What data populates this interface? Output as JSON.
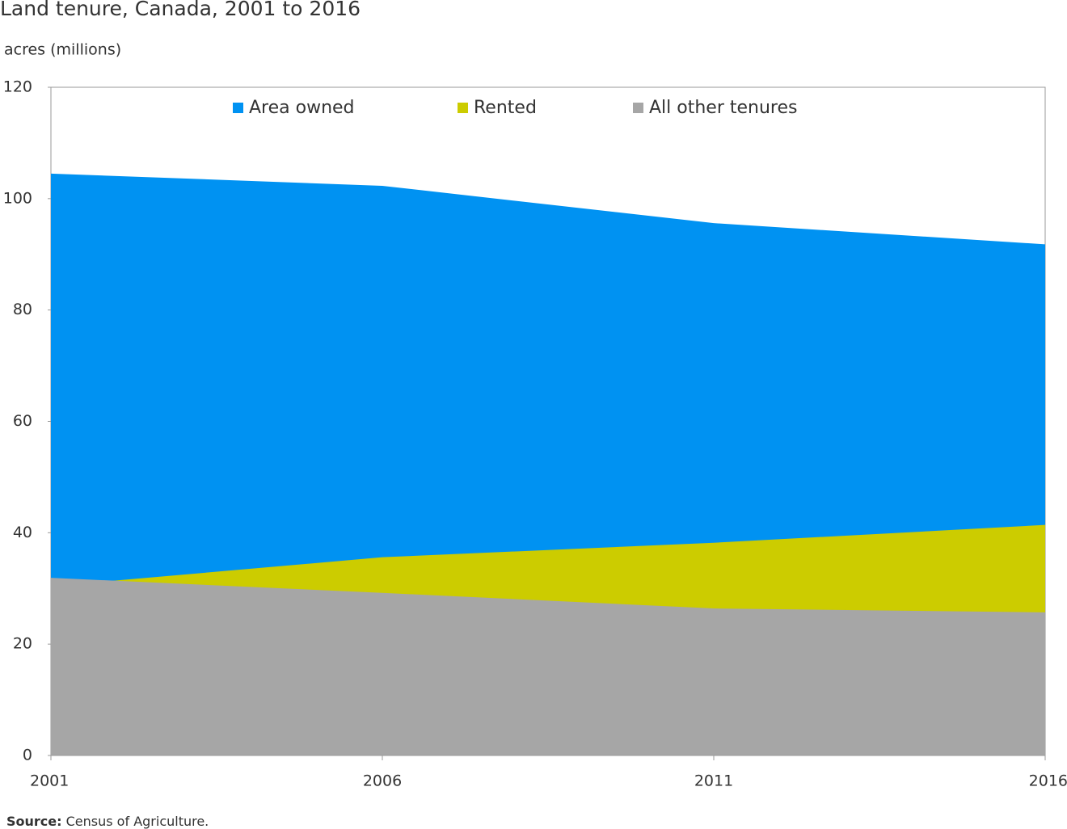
{
  "chart_data": {
    "type": "area",
    "title": "Land tenure, Canada, 2001 to 2016",
    "y_label": "acres (millions)",
    "x": [
      2001,
      2006,
      2011,
      2016
    ],
    "series": [
      {
        "name": "Area owned",
        "color": "#0092f2",
        "values": [
          104.5,
          102.3,
          95.6,
          91.8
        ]
      },
      {
        "name": "Rented",
        "color": "#cccc00",
        "values": [
          30.4,
          35.6,
          38.2,
          41.4
        ]
      },
      {
        "name": "All other tenures",
        "color": "#a6a6a6",
        "values": [
          31.9,
          29.2,
          26.4,
          25.7
        ]
      }
    ],
    "xlim": [
      2001,
      2016
    ],
    "xticks": [
      2001,
      2006,
      2011,
      2016
    ],
    "ylim": [
      0,
      120
    ],
    "yticks": [
      0,
      20,
      40,
      60,
      80,
      100,
      120
    ],
    "legend": "top",
    "source_label": "Source:",
    "source_text": "Census of Agriculture."
  }
}
